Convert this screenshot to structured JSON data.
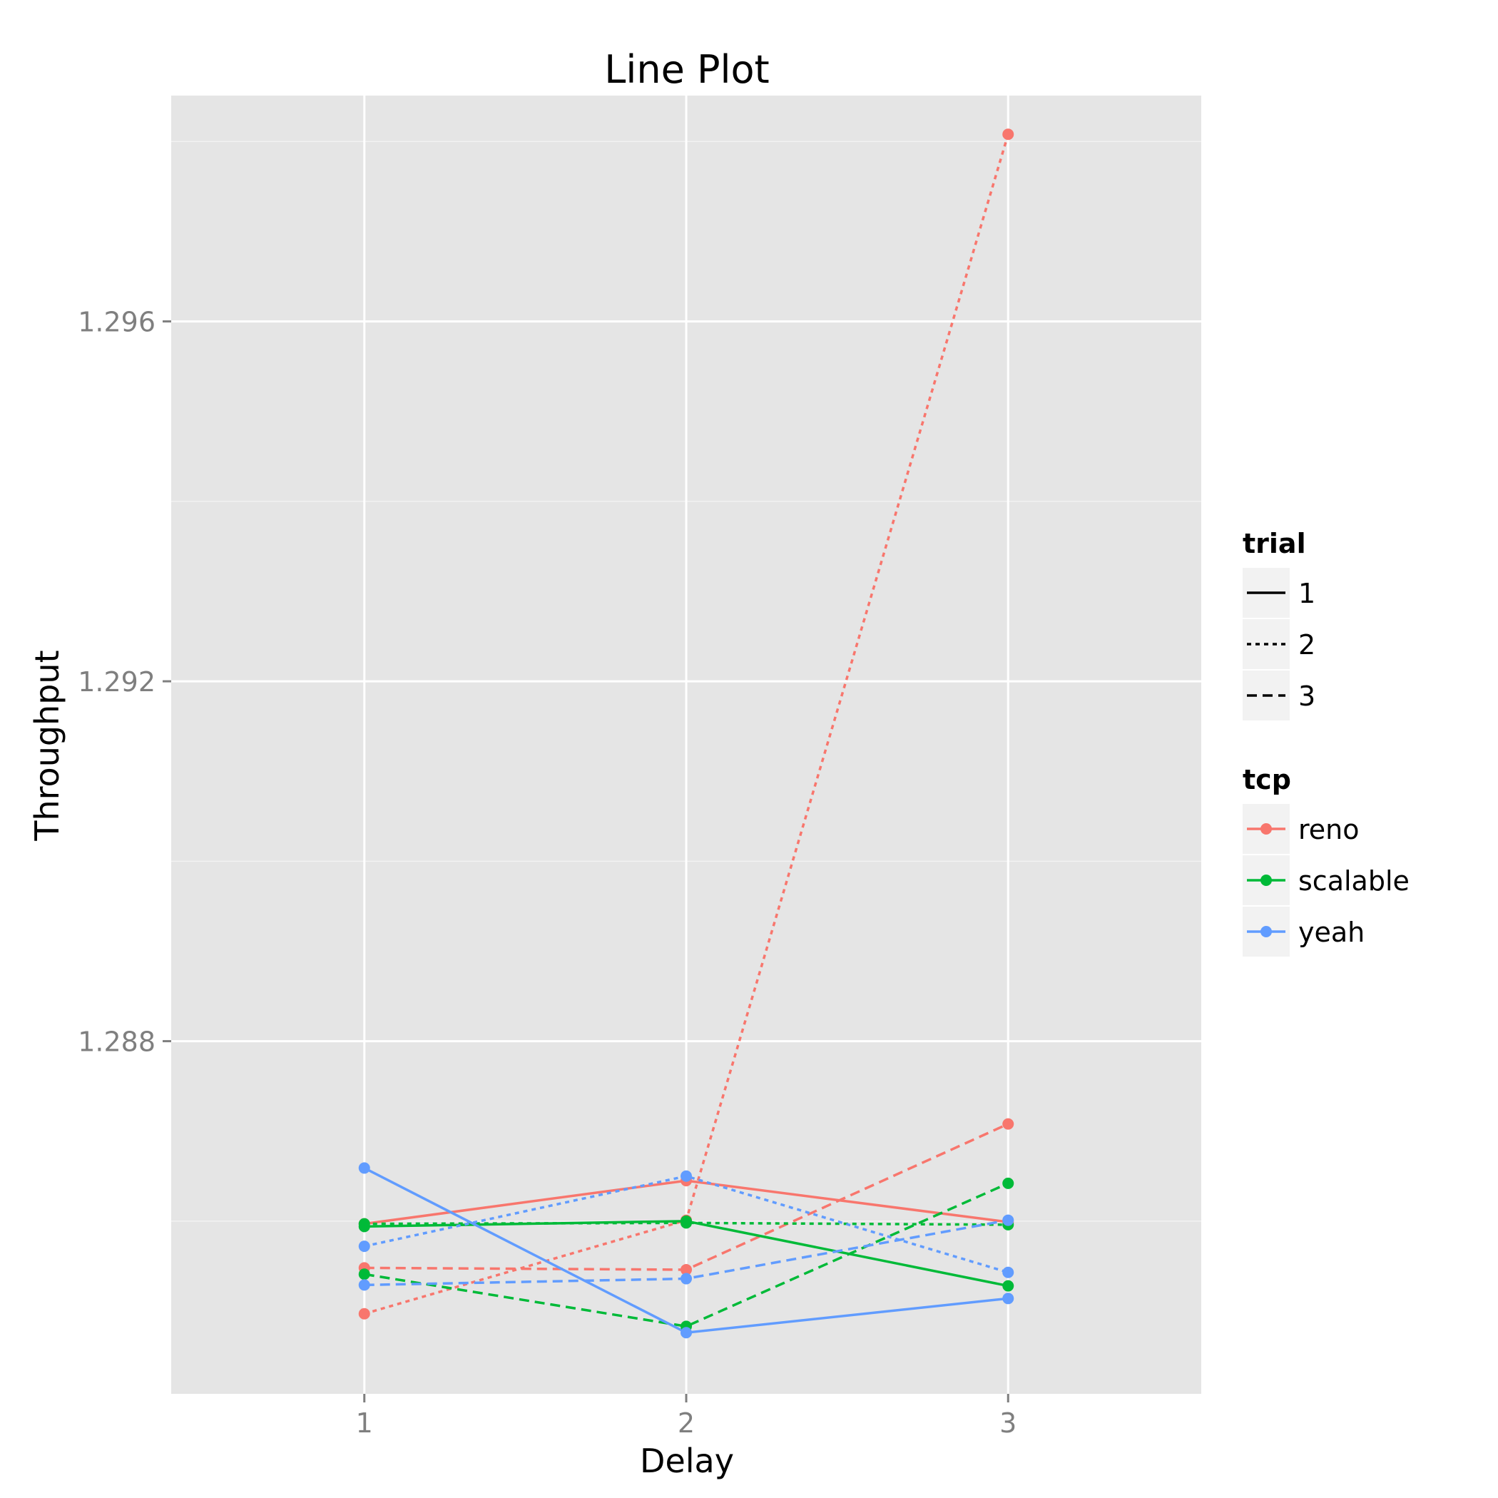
{
  "chart_data": {
    "type": "line",
    "title": "Line Plot",
    "xlabel": "Delay",
    "ylabel": "Throughput",
    "x": [
      1,
      2,
      3
    ],
    "x_ticks": [
      "1",
      "2",
      "3"
    ],
    "y_ticks": [
      "1.288",
      "1.292",
      "1.296"
    ],
    "xlim": [
      0.4,
      3.6
    ],
    "ylim": [
      1.28408,
      1.29851
    ],
    "grid": true,
    "background": "#e5e5e5",
    "series": [
      {
        "tcp": "reno",
        "trial": "1",
        "color": "#f8766d",
        "dash": "solid",
        "values": [
          1.28597,
          1.28645,
          1.28599
        ]
      },
      {
        "tcp": "reno",
        "trial": "2",
        "color": "#f8766d",
        "dash": "dotted",
        "values": [
          1.28497,
          1.28601,
          1.29808
        ]
      },
      {
        "tcp": "reno",
        "trial": "3",
        "color": "#f8766d",
        "dash": "dashed",
        "values": [
          1.28548,
          1.28546,
          1.28708
        ]
      },
      {
        "tcp": "scalable",
        "trial": "1",
        "color": "#00ba38",
        "dash": "solid",
        "values": [
          1.28594,
          1.286,
          1.28528
        ]
      },
      {
        "tcp": "scalable",
        "trial": "2",
        "color": "#00ba38",
        "dash": "dotted",
        "values": [
          1.28597,
          1.28598,
          1.28596
        ]
      },
      {
        "tcp": "scalable",
        "trial": "3",
        "color": "#00ba38",
        "dash": "dashed",
        "values": [
          1.28541,
          1.28483,
          1.28642
        ]
      },
      {
        "tcp": "yeah",
        "trial": "1",
        "color": "#619cff",
        "dash": "solid",
        "values": [
          1.28659,
          1.28476,
          1.28514
        ]
      },
      {
        "tcp": "yeah",
        "trial": "2",
        "color": "#619cff",
        "dash": "dotted",
        "values": [
          1.28572,
          1.2865,
          1.28543
        ]
      },
      {
        "tcp": "yeah",
        "trial": "3",
        "color": "#619cff",
        "dash": "dashed",
        "values": [
          1.28529,
          1.28536,
          1.28601
        ]
      }
    ],
    "legend": {
      "placement": "right",
      "trial": {
        "title": "trial",
        "items": [
          {
            "label": "1",
            "dash": "solid"
          },
          {
            "label": "2",
            "dash": "dotted"
          },
          {
            "label": "3",
            "dash": "dashed"
          }
        ]
      },
      "tcp": {
        "title": "tcp",
        "items": [
          {
            "label": "reno",
            "color": "#f8766d"
          },
          {
            "label": "scalable",
            "color": "#00ba38"
          },
          {
            "label": "yeah",
            "color": "#619cff"
          }
        ]
      }
    }
  }
}
